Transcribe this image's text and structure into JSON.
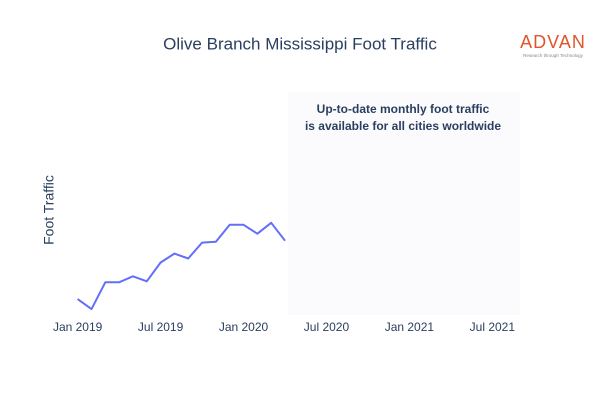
{
  "chart_data": {
    "type": "line",
    "title": "Olive Branch Mississippi Foot Traffic",
    "y_label": "Foot Traffic",
    "logo": {
      "text": "ADVAN",
      "tagline": "Research through Technology"
    },
    "annotation": [
      "Up-to-date monthly foot traffic",
      "is available for all cities worldwide"
    ],
    "x": [
      "2019-01",
      "2019-02",
      "2019-03",
      "2019-04",
      "2019-05",
      "2019-06",
      "2019-07",
      "2019-08",
      "2019-09",
      "2019-10",
      "2019-11",
      "2019-12",
      "2020-01",
      "2020-02",
      "2020-03",
      "2020-04"
    ],
    "values": [
      16,
      6,
      33,
      33,
      39,
      34,
      53,
      62,
      57,
      73,
      74,
      91,
      91,
      82,
      93,
      75
    ],
    "color": "#636efa",
    "xlim": [
      "2018-11",
      "2021-09"
    ],
    "xticks": [
      {
        "value": "2019-01",
        "label": "Jan 2019"
      },
      {
        "value": "2019-07",
        "label": "Jul 2019"
      },
      {
        "value": "2020-01",
        "label": "Jan 2020"
      },
      {
        "value": "2020-07",
        "label": "Jul 2020"
      },
      {
        "value": "2021-01",
        "label": "Jan 2021"
      },
      {
        "value": "2021-07",
        "label": "Jul 2021"
      }
    ],
    "ylim": [
      0,
      225
    ]
  }
}
